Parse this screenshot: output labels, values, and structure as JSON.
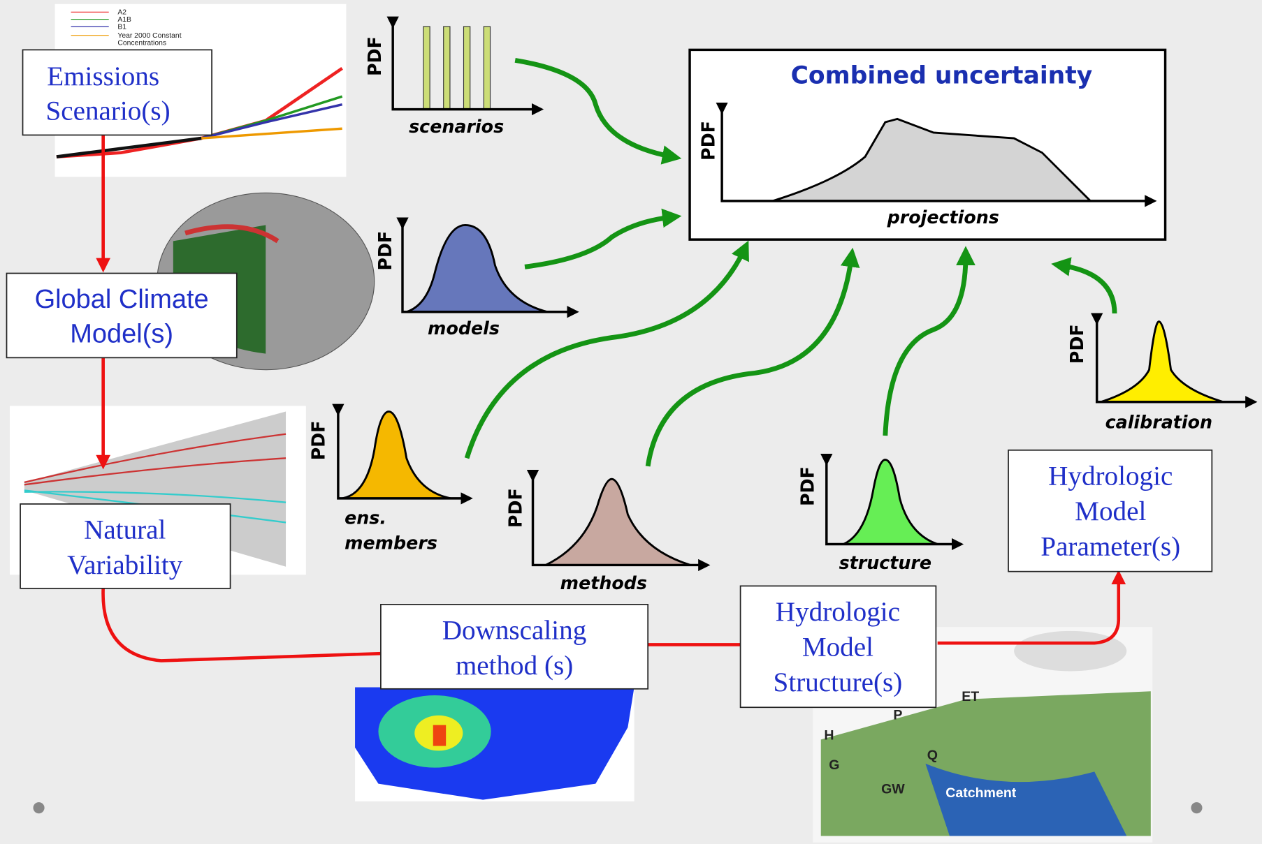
{
  "nodes": [
    {
      "label_lines": [
        "Emissions",
        "Scenario(s)"
      ]
    },
    {
      "label_lines": [
        "Global Climate",
        "Model(s)"
      ]
    },
    {
      "label_lines": [
        "Natural",
        "Variability"
      ]
    },
    {
      "label_lines": [
        "Downscaling",
        "method (s)"
      ]
    },
    {
      "label_lines": [
        "Hydrologic",
        "Model",
        "Structure(s)"
      ]
    },
    {
      "label_lines": [
        "Hydrologic",
        "Model",
        "Parameter(s)"
      ]
    }
  ],
  "pdf_panels": [
    {
      "y_label": "PDF",
      "x_label_lines": [
        "scenarios"
      ]
    },
    {
      "y_label": "PDF",
      "x_label_lines": [
        "models"
      ]
    },
    {
      "y_label": "PDF",
      "x_label_lines": [
        "ens.",
        "members"
      ]
    },
    {
      "y_label": "PDF",
      "x_label_lines": [
        "methods"
      ]
    },
    {
      "y_label": "PDF",
      "x_label_lines": [
        "structure"
      ]
    },
    {
      "y_label": "PDF",
      "x_label_lines": [
        "calibration"
      ]
    }
  ],
  "combined": {
    "title": "Combined uncertainty",
    "y_label": "PDF",
    "x_label": "projections"
  },
  "inset_legend": [
    "A2",
    "A1B",
    "B1",
    "Year 2000 Constant",
    "Concentrations"
  ],
  "catchment_labels": [
    "ET",
    "P",
    "H",
    "G",
    "GW",
    "Q",
    "Catchment"
  ]
}
